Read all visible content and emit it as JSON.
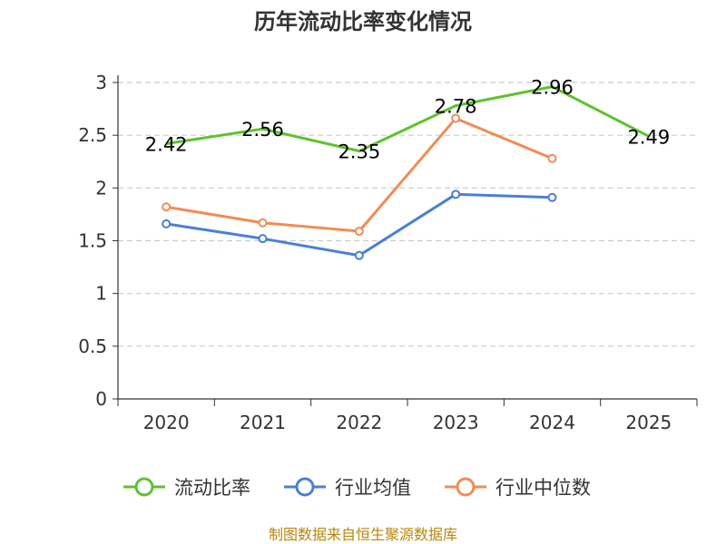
{
  "chart_data": {
    "type": "line",
    "title": "历年流动比率变化情况",
    "categories": [
      "2020",
      "2021",
      "2022",
      "2023",
      "2024",
      "2025"
    ],
    "ylim": [
      0,
      3
    ],
    "yticks": [
      "0",
      "0.5",
      "1",
      "1.5",
      "2",
      "2.5",
      "3"
    ],
    "ytick_values": [
      0,
      0.5,
      1,
      1.5,
      2,
      2.5,
      3
    ],
    "grid": true,
    "legend_position": "bottom",
    "series": [
      {
        "name": "流动比率",
        "color": "#5ec12e",
        "values": [
          2.42,
          2.56,
          2.35,
          2.78,
          2.96,
          2.49
        ],
        "labels": [
          "2.42",
          "2.56",
          "2.35",
          "2.78",
          "2.96",
          "2.49"
        ],
        "show_markers": false
      },
      {
        "name": "行业均值",
        "color": "#4a7fd6",
        "values": [
          1.66,
          1.52,
          1.36,
          1.94,
          1.91,
          null
        ],
        "show_markers": true
      },
      {
        "name": "行业中位数",
        "color": "#f28b55",
        "values": [
          1.82,
          1.67,
          1.59,
          2.66,
          2.28,
          null
        ],
        "show_markers": true
      }
    ]
  },
  "source": "制图数据来自恒生聚源数据库"
}
